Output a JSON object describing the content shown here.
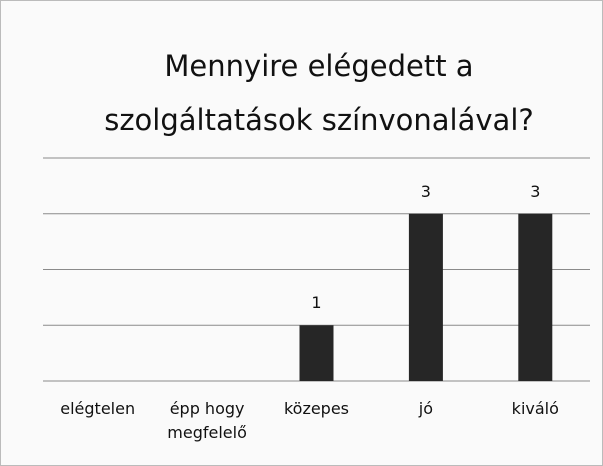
{
  "chart_data": {
    "type": "bar",
    "title": "Mennyire elégedett a szolgáltatások színvonalával?",
    "categories": [
      "elégtelen",
      "épp hogy megfelelő",
      "közepes",
      "jó",
      "kiváló"
    ],
    "values": [
      0,
      0,
      1,
      3,
      3
    ],
    "value_labels": [
      null,
      null,
      "1",
      "3",
      "3"
    ],
    "color": "#262626",
    "ylim": [
      0,
      4
    ],
    "yticks": [
      0,
      1,
      2,
      3,
      4
    ],
    "grid": true
  }
}
